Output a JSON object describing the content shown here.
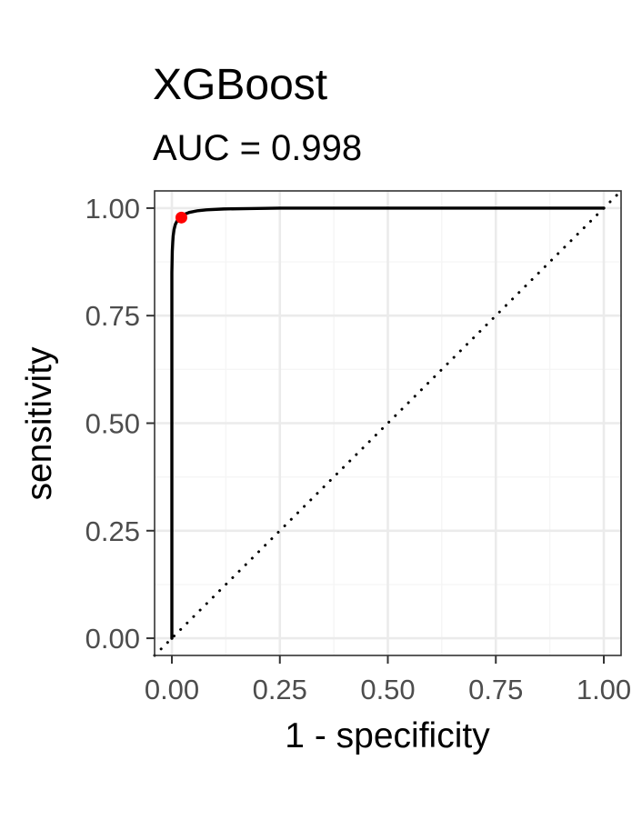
{
  "chart_data": {
    "type": "line",
    "title": "XGBoost",
    "subtitle": "AUC = 0.998",
    "xlabel": "1 - specificity",
    "ylabel": "sensitivity",
    "xlim": [
      -0.04,
      1.04
    ],
    "ylim": [
      -0.04,
      1.04
    ],
    "x_ticks": [
      0.0,
      0.25,
      0.5,
      0.75,
      1.0
    ],
    "x_tick_labels": [
      "0.00",
      "0.25",
      "0.50",
      "0.75",
      "1.00"
    ],
    "y_ticks": [
      0.0,
      0.25,
      0.5,
      0.75,
      1.0
    ],
    "y_tick_labels": [
      "0.00",
      "0.25",
      "0.50",
      "0.75",
      "1.00"
    ],
    "grid": true,
    "legend": "none",
    "series": [
      {
        "x": [
          0.0,
          0.0,
          0.0,
          0.001,
          0.002,
          0.003,
          0.005,
          0.008,
          0.012,
          0.016,
          0.022,
          0.03,
          0.04,
          0.06,
          0.08,
          0.12,
          0.18,
          0.25,
          0.4,
          0.6,
          0.8,
          1.0
        ],
        "y": [
          0.0,
          0.5,
          0.85,
          0.9,
          0.92,
          0.935,
          0.95,
          0.962,
          0.97,
          0.976,
          0.981,
          0.986,
          0.99,
          0.994,
          0.996,
          0.998,
          0.999,
          1.0,
          1.0,
          1.0,
          1.0,
          1.0
        ],
        "color": "#000000"
      }
    ],
    "reference_line": {
      "x": [
        -0.04,
        1.04
      ],
      "y": [
        -0.04,
        1.04
      ],
      "style": "dotted",
      "color": "#000000"
    },
    "highlight_point": {
      "x": 0.022,
      "y": 0.978,
      "color": "#ff0000"
    },
    "colors": {
      "panel_border": "#333333",
      "grid_major": "#ebebeb",
      "grid_minor": "#f5f5f5",
      "tick": "#333333"
    }
  }
}
